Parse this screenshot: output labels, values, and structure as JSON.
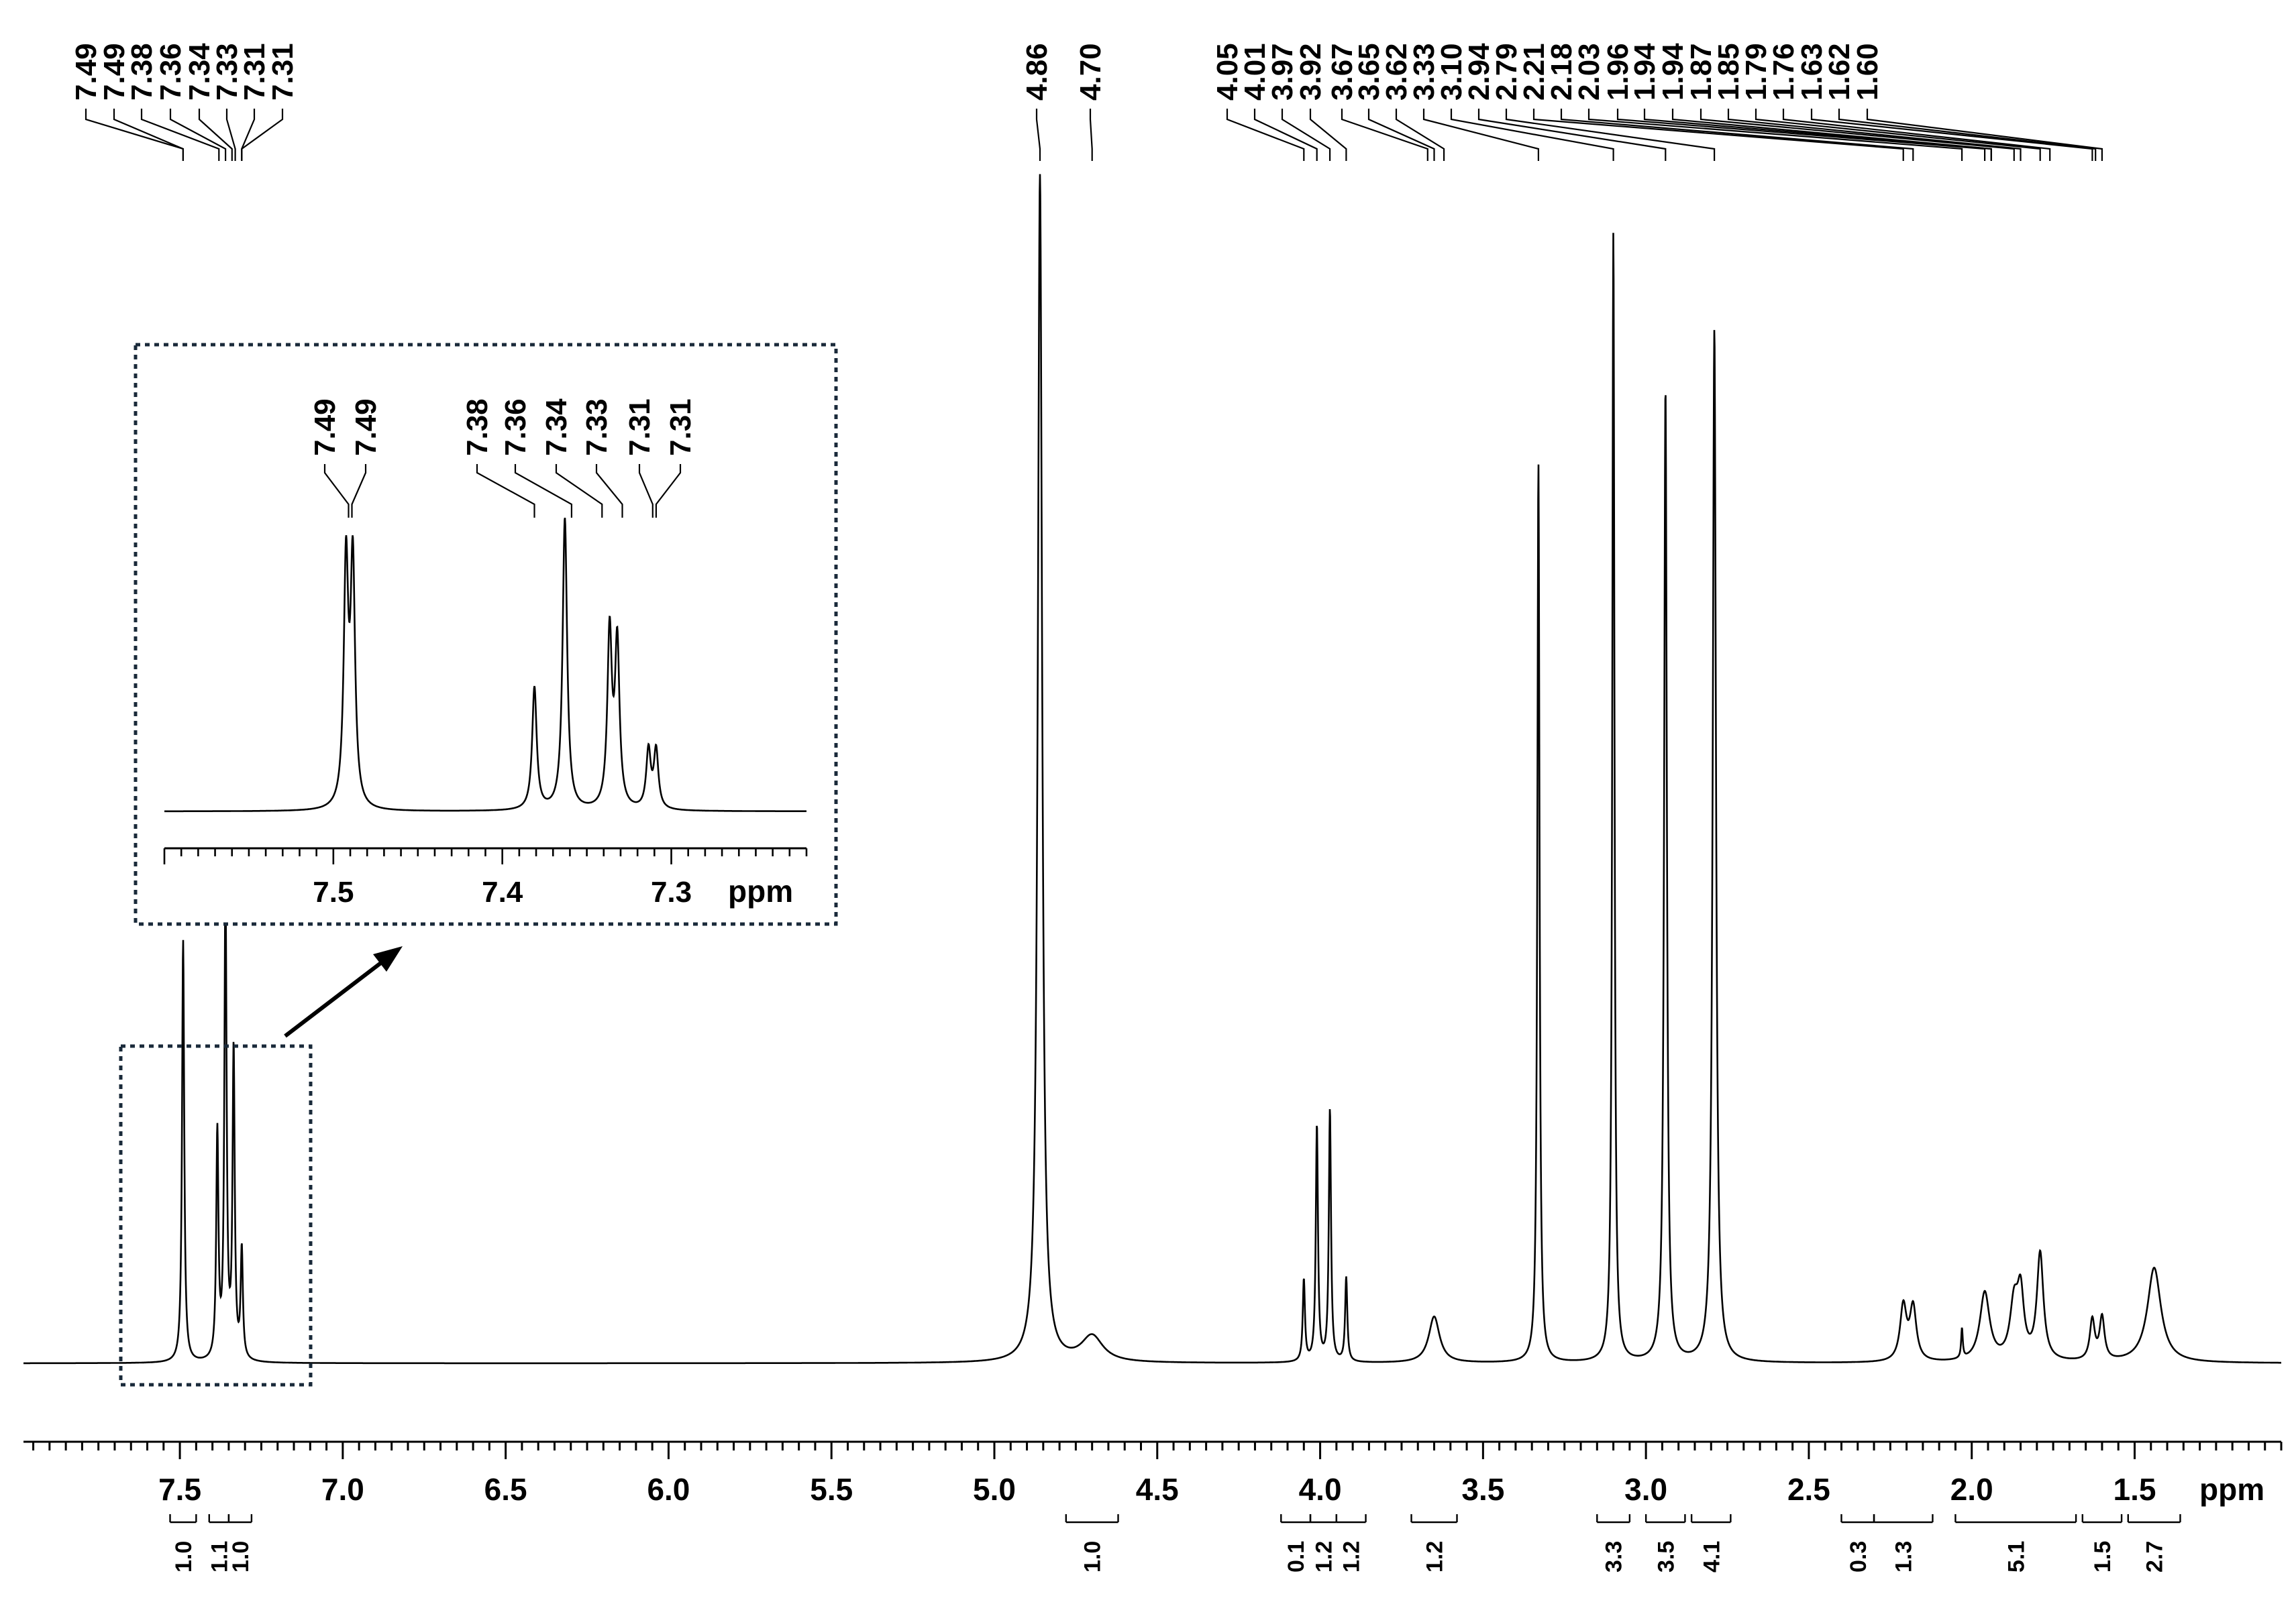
{
  "chart_data": {
    "type": "line",
    "title": "",
    "xlabel": "ppm",
    "ylabel": "",
    "x_reversed": true,
    "xlim": [
      7.98,
      1.05
    ],
    "ticks": [
      "7.5",
      "7.0",
      "6.5",
      "6.0",
      "5.5",
      "5.0",
      "4.5",
      "4.0",
      "3.5",
      "3.0",
      "2.5",
      "2.0",
      "1.5"
    ],
    "tick_values": [
      7.5,
      7.0,
      6.5,
      6.0,
      5.5,
      5.0,
      4.5,
      4.0,
      3.5,
      3.0,
      2.5,
      2.0,
      1.5
    ],
    "grid": false,
    "legend": "none",
    "line_color": "#000000",
    "peak_labels": [
      "7.49",
      "7.49",
      "7.38",
      "7.36",
      "7.34",
      "7.33",
      "7.31",
      "7.31",
      "4.86",
      "4.70",
      "4.05",
      "4.01",
      "3.97",
      "3.92",
      "3.67",
      "3.65",
      "3.62",
      "3.33",
      "3.10",
      "2.94",
      "2.79",
      "2.21",
      "2.18",
      "2.03",
      "1.96",
      "1.94",
      "1.94",
      "1.87",
      "1.85",
      "1.79",
      "1.76",
      "1.63",
      "1.62",
      "1.60"
    ],
    "integrals": [
      {
        "label": "1.0",
        "from": 7.53,
        "to": 7.45
      },
      {
        "label": "1.1",
        "from": 7.41,
        "to": 7.35
      },
      {
        "label": "1.0",
        "from": 7.35,
        "to": 7.28
      },
      {
        "label": "1.0",
        "from": 4.78,
        "to": 4.62
      },
      {
        "label": "0.1",
        "from": 4.12,
        "to": 4.03
      },
      {
        "label": "1.2",
        "from": 4.03,
        "to": 3.95
      },
      {
        "label": "1.2",
        "from": 3.95,
        "to": 3.86
      },
      {
        "label": "1.2",
        "from": 3.72,
        "to": 3.58
      },
      {
        "label": "3.3",
        "from": 3.15,
        "to": 3.05
      },
      {
        "label": "3.5",
        "from": 3.0,
        "to": 2.88
      },
      {
        "label": "4.1",
        "from": 2.86,
        "to": 2.74
      },
      {
        "label": "0.3",
        "from": 2.4,
        "to": 2.3
      },
      {
        "label": "1.3",
        "from": 2.3,
        "to": 2.12
      },
      {
        "label": "5.1",
        "from": 2.05,
        "to": 1.68
      },
      {
        "label": "1.5",
        "from": 1.66,
        "to": 1.54
      },
      {
        "label": "2.7",
        "from": 1.52,
        "to": 1.36
      }
    ],
    "peaks": [
      {
        "ppm": 7.49,
        "height": 0.356,
        "width": 0.004
      },
      {
        "ppm": 7.385,
        "height": 0.19,
        "width": 0.004
      },
      {
        "ppm": 7.36,
        "height": 0.404,
        "width": 0.004
      },
      {
        "ppm": 7.335,
        "height": 0.259,
        "width": 0.004
      },
      {
        "ppm": 7.31,
        "height": 0.092,
        "width": 0.004
      },
      {
        "ppm": 4.86,
        "height": 1.0,
        "width": 0.008
      },
      {
        "ppm": 4.7,
        "height": 0.022,
        "width": 0.04
      },
      {
        "ppm": 4.05,
        "height": 0.069,
        "width": 0.004
      },
      {
        "ppm": 4.01,
        "height": 0.199,
        "width": 0.004
      },
      {
        "ppm": 3.97,
        "height": 0.212,
        "width": 0.004
      },
      {
        "ppm": 3.92,
        "height": 0.071,
        "width": 0.004
      },
      {
        "ppm": 3.65,
        "height": 0.039,
        "width": 0.02
      },
      {
        "ppm": 3.33,
        "height": 0.758,
        "width": 0.004
      },
      {
        "ppm": 3.1,
        "height": 0.952,
        "width": 0.004
      },
      {
        "ppm": 2.94,
        "height": 0.82,
        "width": 0.005
      },
      {
        "ppm": 2.79,
        "height": 0.87,
        "width": 0.006
      },
      {
        "ppm": 2.21,
        "height": 0.046,
        "width": 0.012
      },
      {
        "ppm": 2.18,
        "height": 0.045,
        "width": 0.012
      },
      {
        "ppm": 2.03,
        "height": 0.025,
        "width": 0.003
      },
      {
        "ppm": 1.96,
        "height": 0.058,
        "width": 0.018
      },
      {
        "ppm": 1.87,
        "height": 0.046,
        "width": 0.015
      },
      {
        "ppm": 1.85,
        "height": 0.052,
        "width": 0.012
      },
      {
        "ppm": 1.79,
        "height": 0.09,
        "width": 0.012
      },
      {
        "ppm": 1.63,
        "height": 0.034,
        "width": 0.009
      },
      {
        "ppm": 1.6,
        "height": 0.036,
        "width": 0.009
      },
      {
        "ppm": 1.44,
        "height": 0.08,
        "width": 0.025
      }
    ],
    "inset": {
      "xlabel": "ppm",
      "xlim": [
        7.6,
        7.22
      ],
      "ticks": [
        "7.5",
        "7.4",
        "7.3"
      ],
      "tick_values": [
        7.5,
        7.4,
        7.3
      ],
      "peak_labels": [
        "7.49",
        "7.49",
        "7.38",
        "7.36",
        "7.34",
        "7.33",
        "7.31",
        "7.31"
      ],
      "peaks": [
        {
          "ppm": 7.4925,
          "height": 0.83,
          "width": 0.0016
        },
        {
          "ppm": 7.4885,
          "height": 0.83,
          "width": 0.0016
        },
        {
          "ppm": 7.381,
          "height": 0.42,
          "width": 0.0016
        },
        {
          "ppm": 7.363,
          "height": 1.0,
          "width": 0.0016
        },
        {
          "ppm": 7.3365,
          "height": 0.6,
          "width": 0.0016
        },
        {
          "ppm": 7.332,
          "height": 0.56,
          "width": 0.0016
        },
        {
          "ppm": 7.3135,
          "height": 0.2,
          "width": 0.0016
        },
        {
          "ppm": 7.309,
          "height": 0.2,
          "width": 0.0016
        }
      ]
    }
  }
}
